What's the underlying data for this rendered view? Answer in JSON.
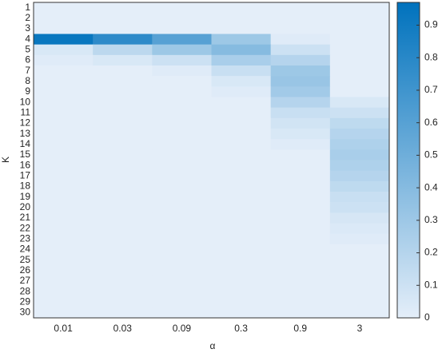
{
  "chart_data": {
    "type": "heatmap",
    "x_label": "α",
    "y_label": "K",
    "categories": [
      "0.01",
      "0.03",
      "0.09",
      "0.3",
      "0.9",
      "3"
    ],
    "rows": [
      "1",
      "2",
      "3",
      "4",
      "5",
      "6",
      "7",
      "8",
      "9",
      "10",
      "11",
      "12",
      "13",
      "14",
      "15",
      "16",
      "17",
      "18",
      "19",
      "20",
      "21",
      "22",
      "23",
      "24",
      "25",
      "26",
      "27",
      "28",
      "29",
      "30"
    ],
    "values": [
      [
        0,
        0,
        0,
        0,
        0,
        0
      ],
      [
        0,
        0,
        0,
        0,
        0,
        0
      ],
      [
        0,
        0,
        0,
        0,
        0,
        0
      ],
      [
        0.93,
        0.78,
        0.6,
        0.3,
        0.02,
        0
      ],
      [
        0.05,
        0.17,
        0.3,
        0.4,
        0.1,
        0
      ],
      [
        0.02,
        0.05,
        0.1,
        0.25,
        0.2,
        0
      ],
      [
        0,
        0,
        0.02,
        0.12,
        0.3,
        0
      ],
      [
        0,
        0,
        0,
        0.05,
        0.32,
        0
      ],
      [
        0,
        0,
        0,
        0.02,
        0.28,
        0
      ],
      [
        0,
        0,
        0,
        0,
        0.2,
        0.05
      ],
      [
        0,
        0,
        0,
        0,
        0.12,
        0.1
      ],
      [
        0,
        0,
        0,
        0,
        0.08,
        0.16
      ],
      [
        0,
        0,
        0,
        0,
        0.05,
        0.2
      ],
      [
        0,
        0,
        0,
        0,
        0.02,
        0.23
      ],
      [
        0,
        0,
        0,
        0,
        0,
        0.25
      ],
      [
        0,
        0,
        0,
        0,
        0,
        0.23
      ],
      [
        0,
        0,
        0,
        0,
        0,
        0.2
      ],
      [
        0,
        0,
        0,
        0,
        0,
        0.16
      ],
      [
        0,
        0,
        0,
        0,
        0,
        0.12
      ],
      [
        0,
        0,
        0,
        0,
        0,
        0.1
      ],
      [
        0,
        0,
        0,
        0,
        0,
        0.06
      ],
      [
        0,
        0,
        0,
        0,
        0,
        0.04
      ],
      [
        0,
        0,
        0,
        0,
        0,
        0.02
      ],
      [
        0,
        0,
        0,
        0,
        0,
        0
      ],
      [
        0,
        0,
        0,
        0,
        0,
        0
      ],
      [
        0,
        0,
        0,
        0,
        0,
        0
      ],
      [
        0,
        0,
        0,
        0,
        0,
        0
      ],
      [
        0,
        0,
        0,
        0,
        0,
        0
      ],
      [
        0,
        0,
        0,
        0,
        0,
        0
      ],
      [
        0,
        0,
        0,
        0,
        0,
        0
      ]
    ],
    "colormap": [
      "#e4eef9",
      "#0072bd"
    ],
    "clim": [
      0,
      0.97
    ],
    "cticks": [
      0,
      0.1,
      0.2,
      0.3,
      0.4,
      0.5,
      0.6,
      0.7,
      0.8,
      0.9
    ]
  }
}
